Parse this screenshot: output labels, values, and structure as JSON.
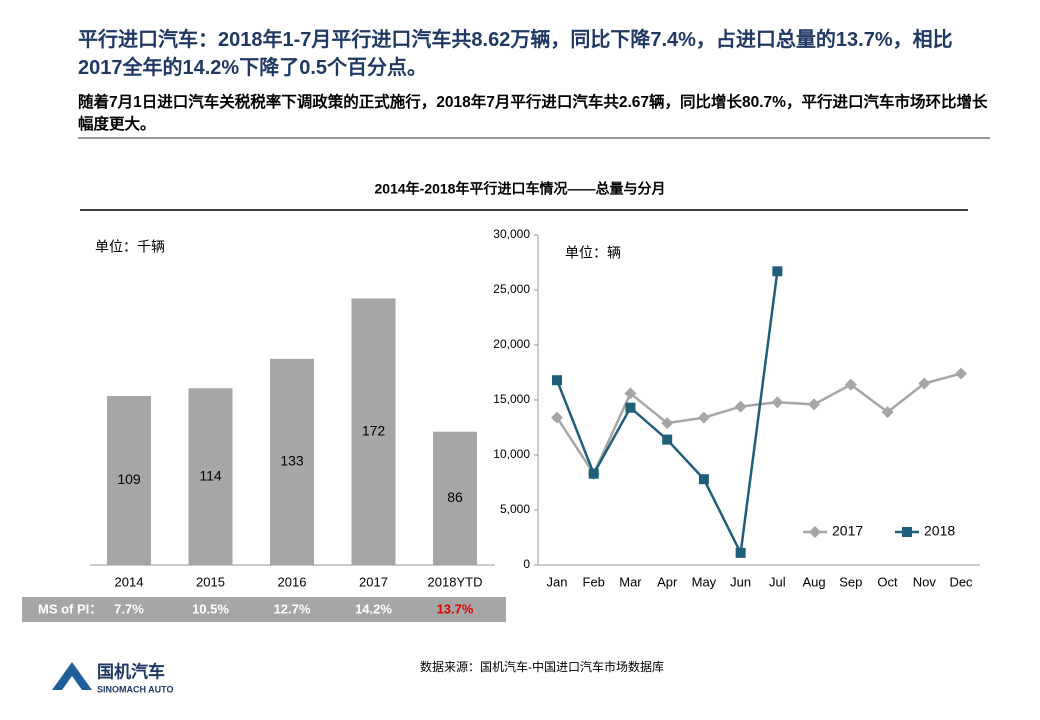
{
  "header": {
    "title": "平行进口汽车：2018年1-7月平行进口汽车共8.62万辆，同比下降7.4%，占进口总量的13.7%，相比2017全年的14.2%下降了0.5个百分点。",
    "subtitle": "随着7月1日进口汽车关税税率下调政策的正式施行，2018年7月平行进口汽车共2.67辆，同比增长80.7%，平行进口汽车市场环比增长幅度更大。"
  },
  "section_title": "2014年-2018年平行进口车情况——总量与分月",
  "chart_data": [
    {
      "type": "bar",
      "unit": "单位：千辆",
      "categories": [
        "2014",
        "2015",
        "2016",
        "2017",
        "2018YTD"
      ],
      "values": [
        109,
        114,
        133,
        172,
        86
      ],
      "color": "#a6a6a6"
    },
    {
      "type": "line",
      "unit": "单位：辆",
      "categories": [
        "Jan",
        "Feb",
        "Mar",
        "Apr",
        "May",
        "Jun",
        "Jul",
        "Aug",
        "Sep",
        "Oct",
        "Nov",
        "Dec"
      ],
      "ylim": [
        0,
        30000
      ],
      "yticks": [
        0,
        {
          "value": 5000,
          "label": "5,000"
        },
        {
          "value": 10000,
          "label": "10,000"
        },
        {
          "value": 15000,
          "label": "15,000"
        },
        {
          "value": 20000,
          "label": "20,000"
        },
        {
          "value": 25000,
          "label": "25,000"
        },
        {
          "value": 30000,
          "label": "30,000"
        }
      ],
      "series": [
        {
          "name": "2017",
          "color": "#a6a6a6",
          "marker": "diamond",
          "values": [
            13400,
            8300,
            15600,
            12900,
            13400,
            14400,
            14800,
            14600,
            16400,
            13900,
            16500,
            17400
          ]
        },
        {
          "name": "2018",
          "color": "#1f5f7a",
          "marker": "square",
          "values": [
            16800,
            8300,
            14300,
            11400,
            7800,
            1100,
            26700,
            null,
            null,
            null,
            null,
            null
          ]
        }
      ]
    }
  ],
  "ms_row": {
    "label": "MS of PI：",
    "values": [
      "7.7%",
      "10.5%",
      "12.7%",
      "14.2%",
      "13.7%"
    ]
  },
  "source": "数据来源：国机汽车-中国进口汽车市场数据库",
  "logo": {
    "name": "国机汽车",
    "sub": "SINOMACH AUTO"
  }
}
